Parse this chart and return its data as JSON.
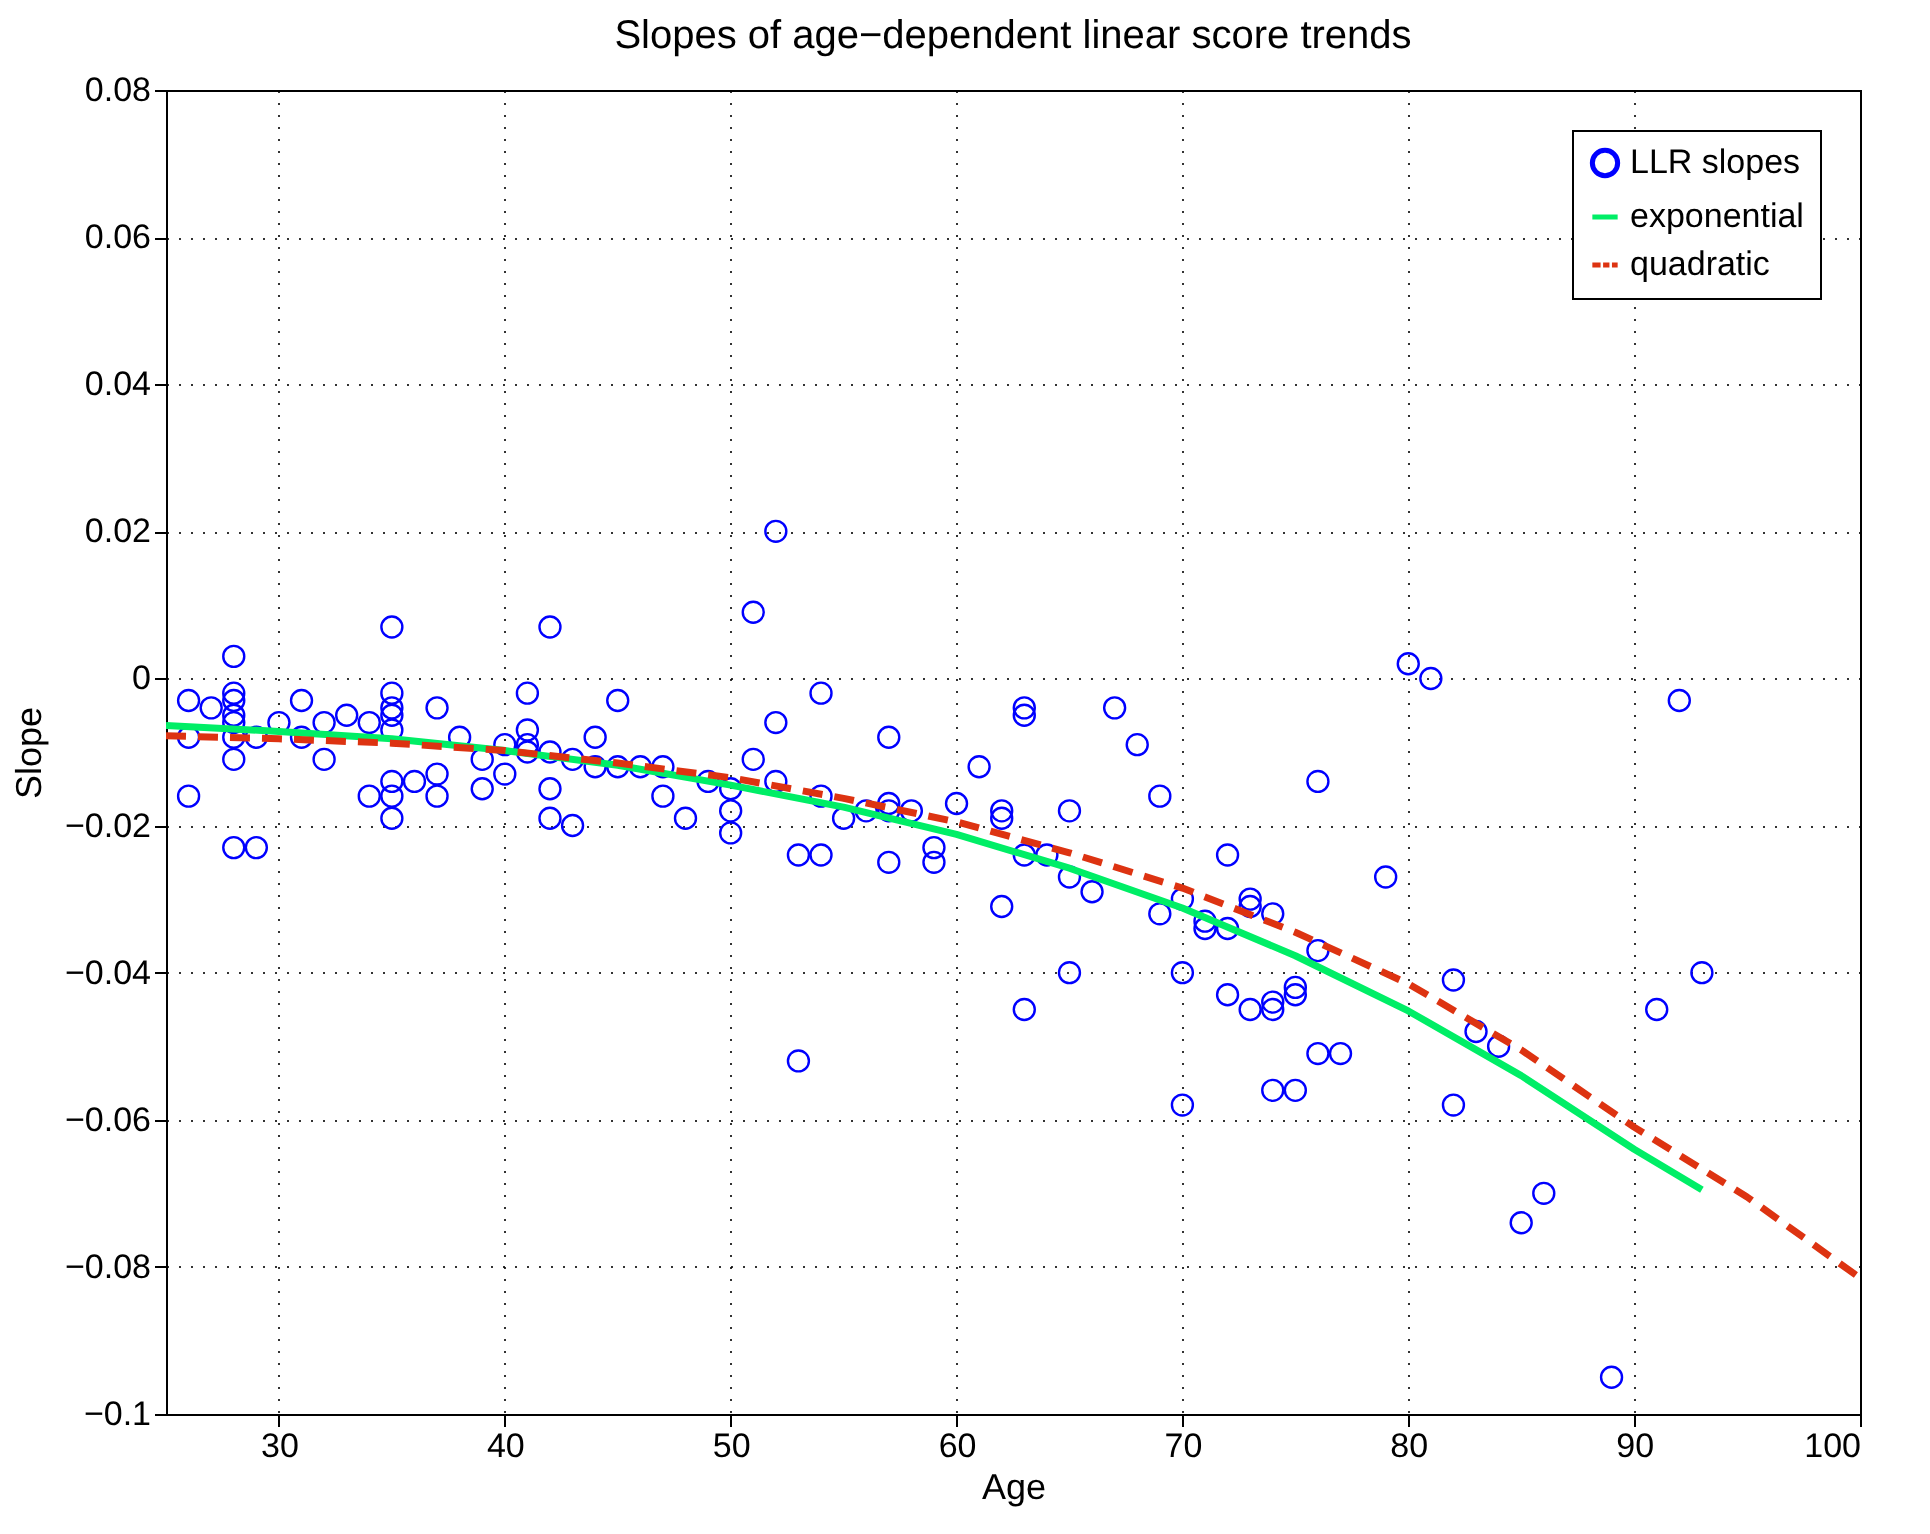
{
  "chart_data": {
    "type": "scatter",
    "title": "Slopes of age−dependent linear score trends",
    "xlabel": "Age",
    "ylabel": "Slope",
    "xlim": [
      25,
      100
    ],
    "xticks": [
      30,
      40,
      50,
      60,
      70,
      80,
      90,
      100
    ],
    "ylim": [
      -0.1,
      0.08
    ],
    "yticks": [
      {
        "value": -0.1,
        "label": "−0.1"
      },
      {
        "value": -0.08,
        "label": "−0.08"
      },
      {
        "value": -0.06,
        "label": "−0.06"
      },
      {
        "value": -0.04,
        "label": "−0.04"
      },
      {
        "value": -0.02,
        "label": "−0.02"
      },
      0,
      0.02,
      0.04,
      0.06,
      0.08
    ],
    "grid": true,
    "legend": "top right",
    "series": [
      {
        "name": "LLR slopes",
        "marker": "circle",
        "color": "#0000ff",
        "x": [
          26,
          26,
          26,
          27,
          28,
          28,
          28,
          28,
          28,
          28,
          28,
          28,
          29,
          29,
          30,
          31,
          31,
          32,
          32,
          33,
          34,
          34,
          35,
          35,
          35,
          35,
          35,
          35,
          35,
          35,
          36,
          37,
          37,
          37,
          38,
          39,
          39,
          40,
          40,
          41,
          41,
          41,
          41,
          42,
          42,
          42,
          42,
          43,
          43,
          44,
          44,
          45,
          45,
          46,
          47,
          47,
          48,
          49,
          50,
          50,
          50,
          51,
          51,
          52,
          52,
          52,
          53,
          53,
          54,
          54,
          54,
          55,
          56,
          57,
          57,
          57,
          57,
          58,
          59,
          59,
          60,
          61,
          62,
          62,
          62,
          63,
          63,
          63,
          63,
          64,
          65,
          65,
          65,
          66,
          67,
          68,
          69,
          69,
          70,
          70,
          70,
          71,
          71,
          72,
          72,
          72,
          73,
          73,
          73,
          74,
          74,
          74,
          74,
          75,
          75,
          75,
          76,
          76,
          76,
          77,
          79,
          80,
          81,
          82,
          82,
          83,
          84,
          85,
          86,
          89,
          91,
          92,
          93
        ],
        "values": [
          -0.003,
          -0.008,
          -0.016,
          -0.004,
          0.003,
          -0.002,
          -0.003,
          -0.005,
          -0.006,
          -0.008,
          -0.011,
          -0.023,
          -0.023,
          -0.008,
          -0.006,
          -0.003,
          -0.008,
          -0.011,
          -0.006,
          -0.005,
          -0.006,
          -0.016,
          0.007,
          -0.002,
          -0.004,
          -0.005,
          -0.007,
          -0.014,
          -0.016,
          -0.019,
          -0.014,
          -0.004,
          -0.013,
          -0.016,
          -0.008,
          -0.011,
          -0.015,
          -0.009,
          -0.013,
          -0.002,
          -0.007,
          -0.009,
          -0.01,
          0.007,
          -0.01,
          -0.015,
          -0.019,
          -0.011,
          -0.02,
          -0.008,
          -0.012,
          -0.003,
          -0.012,
          -0.012,
          -0.012,
          -0.016,
          -0.019,
          -0.014,
          -0.015,
          -0.018,
          -0.021,
          0.009,
          -0.011,
          0.02,
          -0.006,
          -0.014,
          -0.024,
          -0.052,
          -0.002,
          -0.016,
          -0.024,
          -0.019,
          -0.018,
          -0.008,
          -0.017,
          -0.018,
          -0.025,
          -0.018,
          -0.023,
          -0.025,
          -0.017,
          -0.012,
          -0.018,
          -0.019,
          -0.031,
          -0.004,
          -0.005,
          -0.024,
          -0.045,
          -0.024,
          -0.018,
          -0.027,
          -0.04,
          -0.029,
          -0.004,
          -0.009,
          -0.016,
          -0.032,
          -0.03,
          -0.04,
          -0.058,
          -0.033,
          -0.034,
          -0.024,
          -0.034,
          -0.043,
          -0.03,
          -0.031,
          -0.045,
          -0.032,
          -0.044,
          -0.045,
          -0.056,
          -0.042,
          -0.043,
          -0.056,
          -0.014,
          -0.037,
          -0.051,
          -0.051,
          -0.027,
          0.002,
          0,
          -0.041,
          -0.058,
          -0.048,
          -0.05,
          -0.074,
          -0.07,
          -0.095,
          -0.045,
          -0.003,
          -0.04
        ]
      },
      {
        "name": "exponential",
        "type": "line",
        "line_style": "solid",
        "color": "#00ee66",
        "x": [
          25,
          30,
          35,
          40,
          45,
          50,
          55,
          60,
          65,
          70,
          75,
          80,
          85,
          90,
          93
        ],
        "values": [
          -0.0064,
          -0.0072,
          -0.0082,
          -0.0098,
          -0.0118,
          -0.0145,
          -0.0175,
          -0.0212,
          -0.0258,
          -0.0312,
          -0.0377,
          -0.0452,
          -0.054,
          -0.064,
          -0.0695
        ]
      },
      {
        "name": "quadratic",
        "type": "line",
        "line_style": "dashed",
        "color": "#dd3311",
        "x": [
          25,
          30,
          35,
          40,
          45,
          50,
          55,
          60,
          65,
          70,
          75,
          80,
          85,
          90,
          95,
          100
        ],
        "values": [
          -0.0078,
          -0.0082,
          -0.0088,
          -0.0098,
          -0.0115,
          -0.0135,
          -0.0163,
          -0.0195,
          -0.0237,
          -0.0285,
          -0.0345,
          -0.0415,
          -0.0505,
          -0.061,
          -0.0705,
          -0.0815
        ]
      }
    ]
  }
}
